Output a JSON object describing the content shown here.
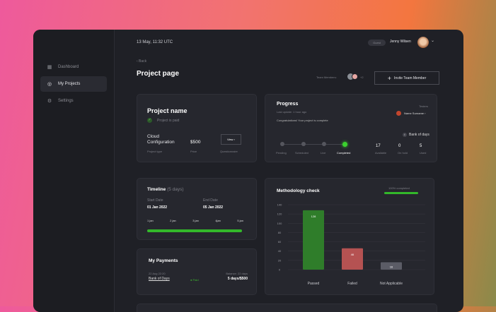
{
  "header": {
    "datetime": "13 May,  11:32 UTC",
    "badge": "Guest",
    "user_name": "Jenny Wilsen"
  },
  "sidebar": {
    "items": [
      {
        "label": "Dashboard",
        "icon": "grid-icon"
      },
      {
        "label": "My Projects",
        "icon": "folder-icon"
      },
      {
        "label": "Settings",
        "icon": "gear-icon"
      }
    ]
  },
  "page": {
    "back": "‹ Back",
    "title": "Project page",
    "team_members_label": "Team Members:",
    "team_more": "+2",
    "invite": "Invite Team Member"
  },
  "project": {
    "name": "Project name",
    "paid": "Project is paid",
    "type_value": "Cloud Configuration",
    "type_label": "Project type",
    "price_value": "$500",
    "price_label": "Price",
    "view": "View ›",
    "questionnaire": "Questionnaire"
  },
  "progress": {
    "title": "Progress",
    "updated": "Last update: 1 hour ago",
    "message": "Congratulations! Your project is complete",
    "testers_label": "Testers",
    "tester": "Name Surname ›",
    "bank_label": "Bank of days",
    "steps": [
      "Pending",
      "Scheduled",
      "Live",
      "Completed"
    ],
    "stats": [
      {
        "value": "17",
        "label": "Available"
      },
      {
        "value": "0",
        "label": "On hold"
      },
      {
        "value": "5",
        "label": "Used"
      }
    ]
  },
  "timeline": {
    "title": "Timeline",
    "days": "(5 days)",
    "start_label": "Start Date",
    "start": "01 Jan 2022",
    "end_label": "End Date",
    "end": "05 Jan 2022",
    "ticks": [
      "1 jan",
      "2 jan",
      "3 jan",
      "4jan",
      "5 jan"
    ],
    "progress": 1.0
  },
  "payments": {
    "title": "My Payments",
    "date": "22 Aug 22:20",
    "item": "Bank of Days",
    "status": "Paid",
    "balance_label": "Balance: 22 days",
    "balance": "5 days/$500"
  },
  "methodology": {
    "title": "Methodology check",
    "completed": "100% completed",
    "completed_fraction": 1.0
  },
  "chart_data": {
    "type": "bar",
    "categories": [
      "Passed",
      "Failed",
      "Not Applicable"
    ],
    "values": [
      128,
      46,
      16
    ],
    "labels": [
      "128",
      "46",
      "16"
    ],
    "colors": [
      "#2f7d2a",
      "#b55252",
      "#5b5c66"
    ],
    "ylim": [
      0,
      140
    ],
    "yticks": [
      "0",
      "20",
      "40",
      "60",
      "80",
      "100",
      "120",
      "140"
    ],
    "grid": true
  }
}
